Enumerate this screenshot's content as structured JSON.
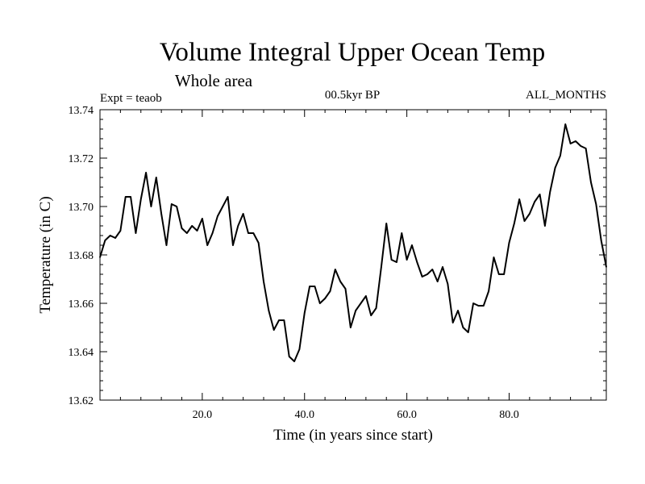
{
  "chart_data": {
    "type": "line",
    "title": "Volume Integral Upper Ocean Temp",
    "subtitle": "Whole area",
    "left_note": "Expt = teaob",
    "center_note": "00.5kyr BP",
    "right_note": "ALL_MONTHS",
    "xlabel": "Time (in years since start)",
    "ylabel": "Temperature (in C)",
    "xlim": [
      0,
      99
    ],
    "ylim": [
      13.62,
      13.74
    ],
    "xticks": [
      20,
      40,
      60,
      80
    ],
    "xtick_labels": [
      "20.0",
      "40.0",
      "60.0",
      "80.0"
    ],
    "yticks": [
      13.62,
      13.64,
      13.66,
      13.68,
      13.7,
      13.72,
      13.74
    ],
    "ytick_labels": [
      "13.62",
      "13.64",
      "13.66",
      "13.68",
      "13.70",
      "13.72",
      "13.74"
    ],
    "series": [
      {
        "name": "teaob",
        "x": [
          0,
          1,
          2,
          3,
          4,
          5,
          6,
          7,
          8,
          9,
          10,
          11,
          12,
          13,
          14,
          15,
          16,
          17,
          18,
          19,
          20,
          21,
          22,
          23,
          24,
          25,
          26,
          27,
          28,
          29,
          30,
          31,
          32,
          33,
          34,
          35,
          36,
          37,
          38,
          39,
          40,
          41,
          42,
          43,
          44,
          45,
          46,
          47,
          48,
          49,
          50,
          51,
          52,
          53,
          54,
          55,
          56,
          57,
          58,
          59,
          60,
          61,
          62,
          63,
          64,
          65,
          66,
          67,
          68,
          69,
          70,
          71,
          72,
          73,
          74,
          75,
          76,
          77,
          78,
          79,
          80,
          81,
          82,
          83,
          84,
          85,
          86,
          87,
          88,
          89,
          90,
          91,
          92,
          93,
          94,
          95,
          96,
          97,
          98,
          99
        ],
        "values": [
          13.679,
          13.686,
          13.688,
          13.687,
          13.69,
          13.704,
          13.704,
          13.689,
          13.703,
          13.714,
          13.7,
          13.712,
          13.697,
          13.684,
          13.701,
          13.7,
          13.691,
          13.689,
          13.692,
          13.69,
          13.695,
          13.684,
          13.689,
          13.696,
          13.7,
          13.704,
          13.684,
          13.692,
          13.697,
          13.689,
          13.689,
          13.685,
          13.669,
          13.657,
          13.649,
          13.653,
          13.653,
          13.638,
          13.636,
          13.641,
          13.656,
          13.667,
          13.667,
          13.66,
          13.662,
          13.665,
          13.674,
          13.669,
          13.666,
          13.65,
          13.657,
          13.66,
          13.663,
          13.655,
          13.658,
          13.675,
          13.693,
          13.678,
          13.677,
          13.689,
          13.678,
          13.684,
          13.677,
          13.671,
          13.672,
          13.674,
          13.669,
          13.675,
          13.668,
          13.652,
          13.657,
          13.65,
          13.648,
          13.66,
          13.659,
          13.659,
          13.665,
          13.679,
          13.672,
          13.672,
          13.685,
          13.693,
          13.703,
          13.694,
          13.697,
          13.702,
          13.705,
          13.692,
          13.706,
          13.716,
          13.721,
          13.734,
          13.726,
          13.727,
          13.725,
          13.724,
          13.71,
          13.701,
          13.686,
          13.675
        ]
      }
    ]
  }
}
